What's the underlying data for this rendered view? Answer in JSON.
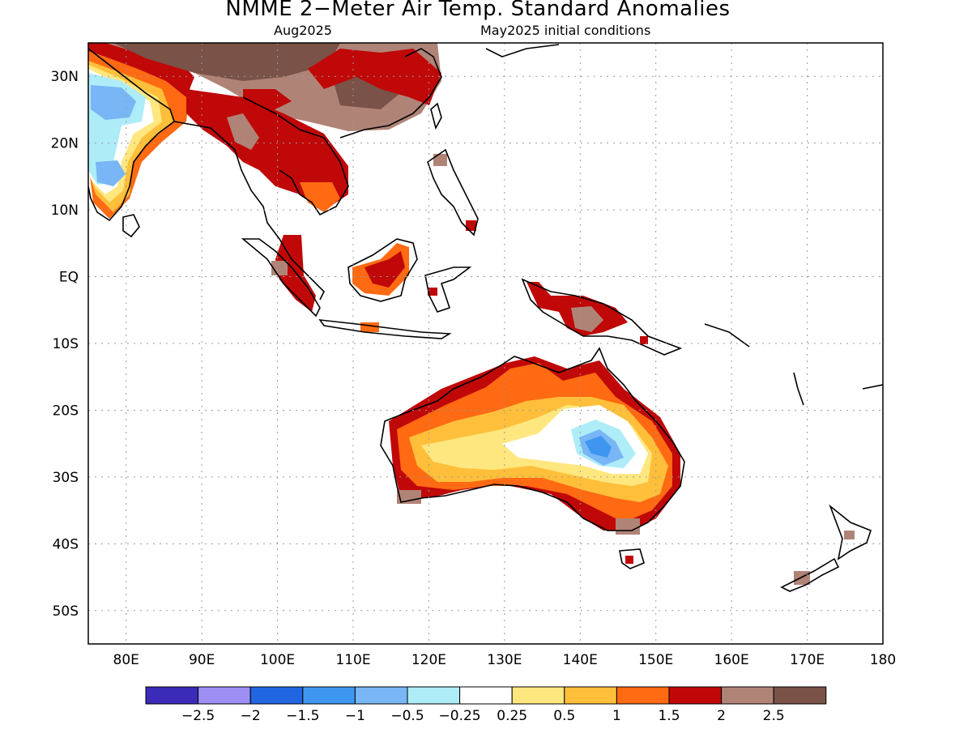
{
  "title": "NMME 2−Meter Air Temp. Standard Anomalies",
  "subtitle_left": "Aug2025",
  "subtitle_right": "May2025 initial conditions",
  "map": {
    "lon_range": [
      75,
      180
    ],
    "lat_range": [
      -55,
      35
    ],
    "lat_ticks": [
      {
        "value": 30,
        "label": "30N"
      },
      {
        "value": 20,
        "label": "20N"
      },
      {
        "value": 10,
        "label": "10N"
      },
      {
        "value": 0,
        "label": "EQ"
      },
      {
        "value": -10,
        "label": "10S"
      },
      {
        "value": -20,
        "label": "20S"
      },
      {
        "value": -30,
        "label": "30S"
      },
      {
        "value": -40,
        "label": "40S"
      },
      {
        "value": -50,
        "label": "50S"
      }
    ],
    "lon_ticks": [
      {
        "value": 80,
        "label": "80E"
      },
      {
        "value": 90,
        "label": "90E"
      },
      {
        "value": 100,
        "label": "100E"
      },
      {
        "value": 110,
        "label": "110E"
      },
      {
        "value": 120,
        "label": "120E"
      },
      {
        "value": 130,
        "label": "130E"
      },
      {
        "value": 140,
        "label": "140E"
      },
      {
        "value": 150,
        "label": "150E"
      },
      {
        "value": 160,
        "label": "160E"
      },
      {
        "value": 170,
        "label": "170E"
      },
      {
        "value": 180,
        "label": "180"
      }
    ],
    "grid": "dotted"
  },
  "colorbar": {
    "colors": [
      "#3a2bb8",
      "#9d8ef3",
      "#2166e0",
      "#3f96f0",
      "#78b6f5",
      "#aeecf8",
      "#ffffff",
      "#ffe780",
      "#ffbf3a",
      "#ff6a12",
      "#c00808",
      "#b08377",
      "#7a5247"
    ],
    "labels": [
      "−2.5",
      "−2",
      "−1.5",
      "−1",
      "−0.5",
      "−0.25",
      "0.25",
      "0.5",
      "1",
      "1.5",
      "2",
      "2.5"
    ]
  }
}
